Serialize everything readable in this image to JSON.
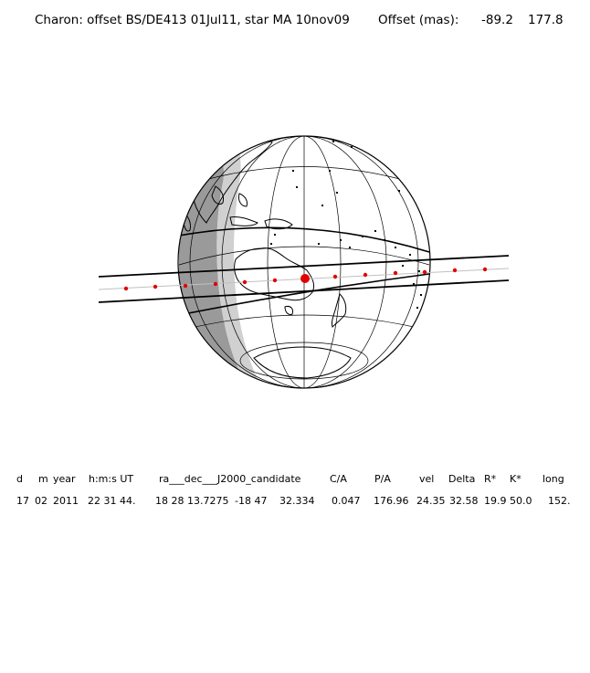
{
  "header": {
    "title": "Charon: offset BS/DE413 01Jul11, star MA 10nov09",
    "offset_label": "Offset (mas):",
    "offset_ra": "-89.2",
    "offset_dec": "177.8"
  },
  "table": {
    "headers": [
      "d",
      "m",
      "year",
      "h:m:s UT",
      "ra___dec___J2000_candidate",
      "C/A",
      "P/A",
      "vel",
      "Delta",
      "R*",
      "K*",
      "long"
    ],
    "values": [
      "17",
      "02",
      "2011",
      "22 31 44.",
      "18 28 13.7275",
      "-18 47",
      "32.334",
      "0.047",
      "176.96",
      "24.35",
      "32.58",
      "19.9",
      "50.0",
      "152."
    ]
  },
  "colors": {
    "shadow_dark": "#9a9a9a",
    "shadow_light": "#d0d0d0",
    "track": "#e00000"
  }
}
